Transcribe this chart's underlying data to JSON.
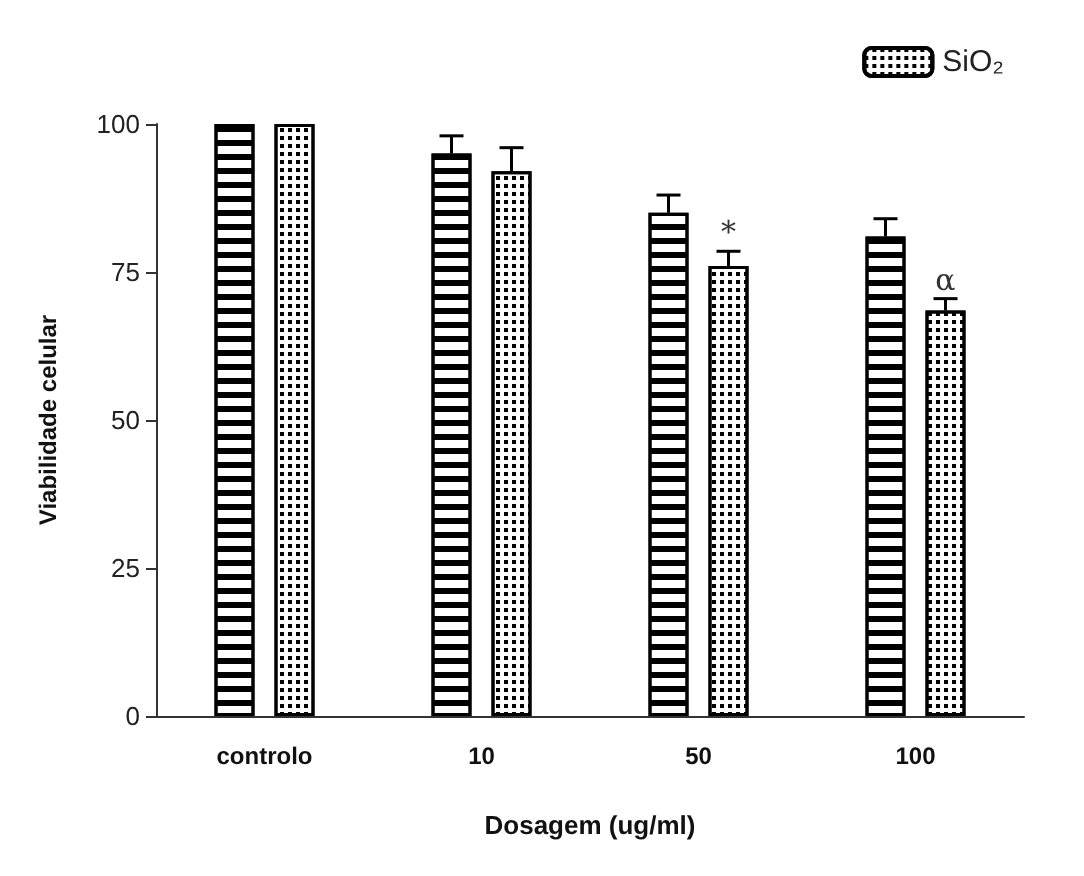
{
  "chart_data": {
    "type": "bar",
    "xlabel": "Dosagem (ug/ml)",
    "ylabel": "Viabilidade celular",
    "categories": [
      "controlo",
      "10",
      "50",
      "100"
    ],
    "series": [
      {
        "color": "#000000",
        "values": [
          100,
          95,
          85,
          81
        ],
        "errors": [
          null,
          3,
          3,
          3
        ]
      },
      {
        "name": "SiO₂",
        "color": "#000000",
        "values": [
          100,
          92,
          76,
          68.5
        ],
        "errors": [
          null,
          4,
          2.5,
          2
        ]
      }
    ],
    "annotations": [
      "*",
      "α"
    ],
    "ylim": [
      0,
      100
    ],
    "yticks": [
      0,
      25,
      50,
      75,
      100
    ],
    "grid": false,
    "legend": "top right"
  }
}
